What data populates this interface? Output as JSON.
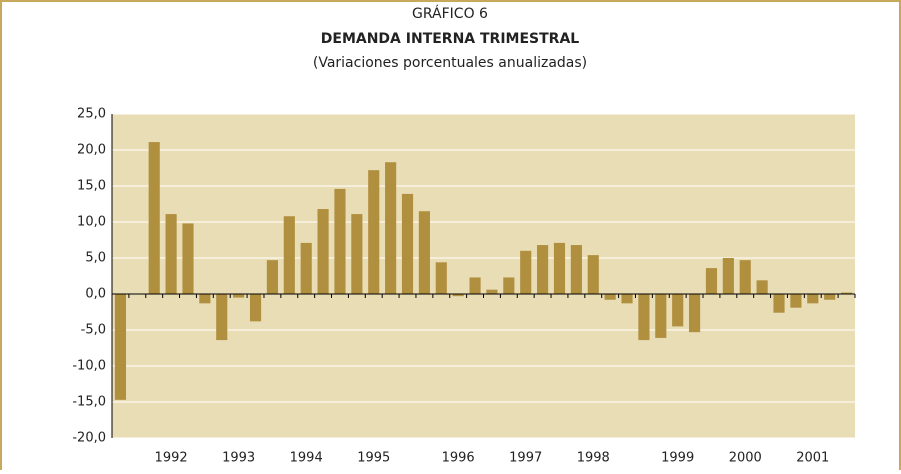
{
  "chart_data": {
    "type": "bar",
    "title": "GRÁFICO 6",
    "subtitle": "DEMANDA INTERNA TRIMESTRAL",
    "note": "(Variaciones porcentuales anualizadas)",
    "categories": [
      null,
      null,
      null,
      "1992",
      null,
      null,
      null,
      "1993",
      null,
      null,
      null,
      "1994",
      null,
      null,
      null,
      "1995",
      null,
      null,
      null,
      null,
      "1996",
      null,
      null,
      null,
      "1997",
      null,
      null,
      null,
      "1998",
      null,
      null,
      null,
      null,
      "1999",
      null,
      null,
      null,
      "2000",
      null,
      null,
      null,
      "2001",
      null,
      null
    ],
    "values": [
      -14.7,
      0,
      21.1,
      11.1,
      9.8,
      -1.3,
      -6.4,
      -0.5,
      -3.8,
      4.7,
      10.8,
      7.1,
      11.8,
      14.6,
      11.1,
      17.2,
      18.3,
      13.9,
      11.5,
      4.4,
      -0.3,
      2.3,
      0.6,
      2.3,
      6.0,
      6.8,
      7.1,
      6.8,
      5.4,
      -0.8,
      -1.3,
      -6.4,
      -6.1,
      -4.5,
      -5.3,
      3.6,
      5.0,
      4.7,
      1.9,
      -2.6,
      -1.9,
      -1.3,
      -0.8,
      0.2
    ],
    "color": "#b0903f",
    "ylim": [
      -20,
      25
    ],
    "yticks": [
      {
        "value": -20,
        "label": "-20,0"
      },
      {
        "value": -15,
        "label": "-15,0"
      },
      {
        "value": -10,
        "label": "-10,0"
      },
      {
        "value": -5,
        "label": "-5,0"
      },
      {
        "value": 0,
        "label": "0,0"
      },
      {
        "value": 5,
        "label": "5,0"
      },
      {
        "value": 10,
        "label": "10,0"
      },
      {
        "value": 15,
        "label": "15,0"
      },
      {
        "value": 20,
        "label": "20,0"
      },
      {
        "value": 25,
        "label": "25,0"
      }
    ],
    "grid": true
  }
}
